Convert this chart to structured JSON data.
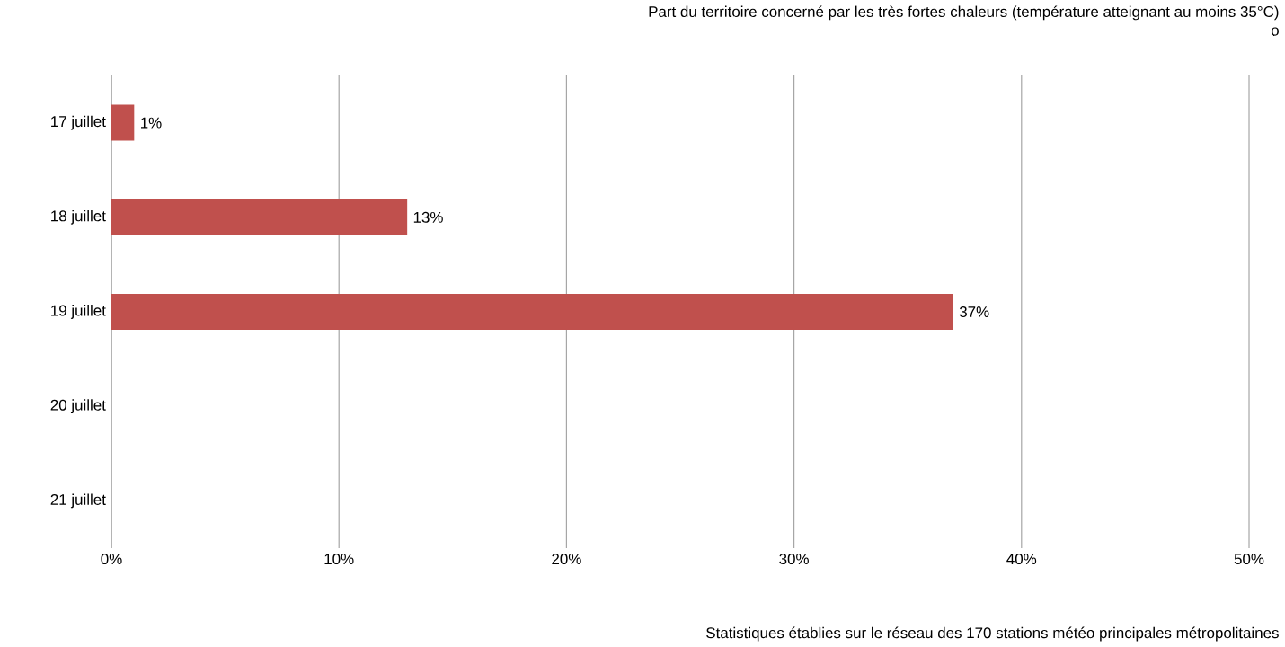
{
  "chart_data": {
    "type": "bar",
    "orientation": "horizontal",
    "title": "Part du territoire concerné par les très fortes chaleurs (température atteignant au moins 35°C)",
    "subtitle": "o",
    "categories": [
      "17 juillet",
      "18 juillet",
      "19 juillet",
      "20 juillet",
      "21 juillet"
    ],
    "values": [
      1,
      13,
      37,
      null,
      null
    ],
    "value_labels": [
      "1%",
      "13%",
      "37%",
      null,
      null
    ],
    "color": "#c0504d",
    "xlim": [
      0,
      50
    ],
    "xticks": [
      {
        "value": 0,
        "label": "0%"
      },
      {
        "value": 10,
        "label": "10%"
      },
      {
        "value": 20,
        "label": "20%"
      },
      {
        "value": 30,
        "label": "30%"
      },
      {
        "value": 40,
        "label": "40%"
      },
      {
        "value": 50,
        "label": "50%"
      }
    ],
    "grid": "x",
    "annotations": [
      "Statistiques établies sur le réseau des 170 stations météo principales métropolitaines"
    ]
  }
}
